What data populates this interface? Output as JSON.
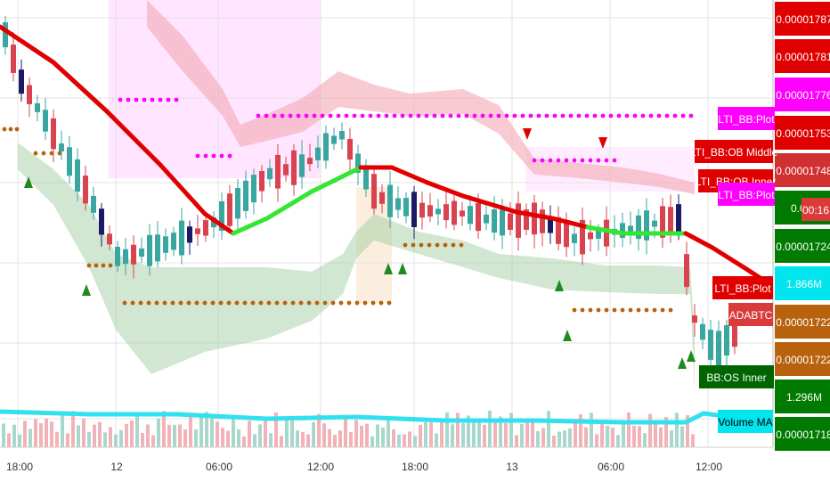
{
  "chart_data": {
    "type": "candlestick",
    "symbol": "ADABTC",
    "time_labels": [
      "18:00",
      "12",
      "06:00",
      "12:00",
      "18:00",
      "13",
      "06:00",
      "12:00"
    ],
    "price_ticks": [
      "0.00001787",
      "0.00001781",
      "0.00001776",
      "0.00001753",
      "0.00001748",
      "0.000",
      "0.00001724",
      "1.866M",
      "0.00001722",
      "0.00001722",
      "1.296M",
      "0.00001718"
    ],
    "price_tick_colors": [
      "#e00000",
      "#e00000",
      "#ff00ff",
      "#e00000",
      "#d03030",
      "#007a00",
      "#007a00",
      "#00e5ee",
      "#b8620e",
      "#b8620e",
      "#007a00",
      "#007a00"
    ],
    "countdown": "00:16",
    "indicator_labels": [
      {
        "text": "LTI_BB:Plot",
        "bg": "#ff00ff",
        "fg": "#ffffff"
      },
      {
        "text": "LTI_BB:OB Middle",
        "bg": "#e00000",
        "fg": "#ffffff"
      },
      {
        "text": "LTI_BB:OB Inner",
        "bg": "#e00000",
        "fg": "#ffffff"
      },
      {
        "text": "LTI_BB:Plot",
        "bg": "#ff00ff",
        "fg": "#ffffff"
      },
      {
        "text": "LTI_BB:Plot",
        "bg": "#e00000",
        "fg": "#ffffff"
      },
      {
        "text": "ADABTC",
        "bg": "#d93b3b",
        "fg": "#ffffff"
      },
      {
        "text": "BB:OS Inner",
        "bg": "#006400",
        "fg": "#ffffff"
      },
      {
        "text": "Volume MA",
        "bg": "#00e5ee",
        "fg": "#000000"
      }
    ],
    "colors": {
      "up": "#3aa6a0",
      "down": "#d9434f",
      "navy": "#1a1a66",
      "ma_down": "#e00000",
      "ma_up": "#33e633",
      "ob_band": "#f4a8b4",
      "os_band": "#9cc99c",
      "magenta": "#ff00ff",
      "brown": "#b8620e",
      "volume_ma": "#33e0ee",
      "grid": "#e3e3e3"
    }
  }
}
